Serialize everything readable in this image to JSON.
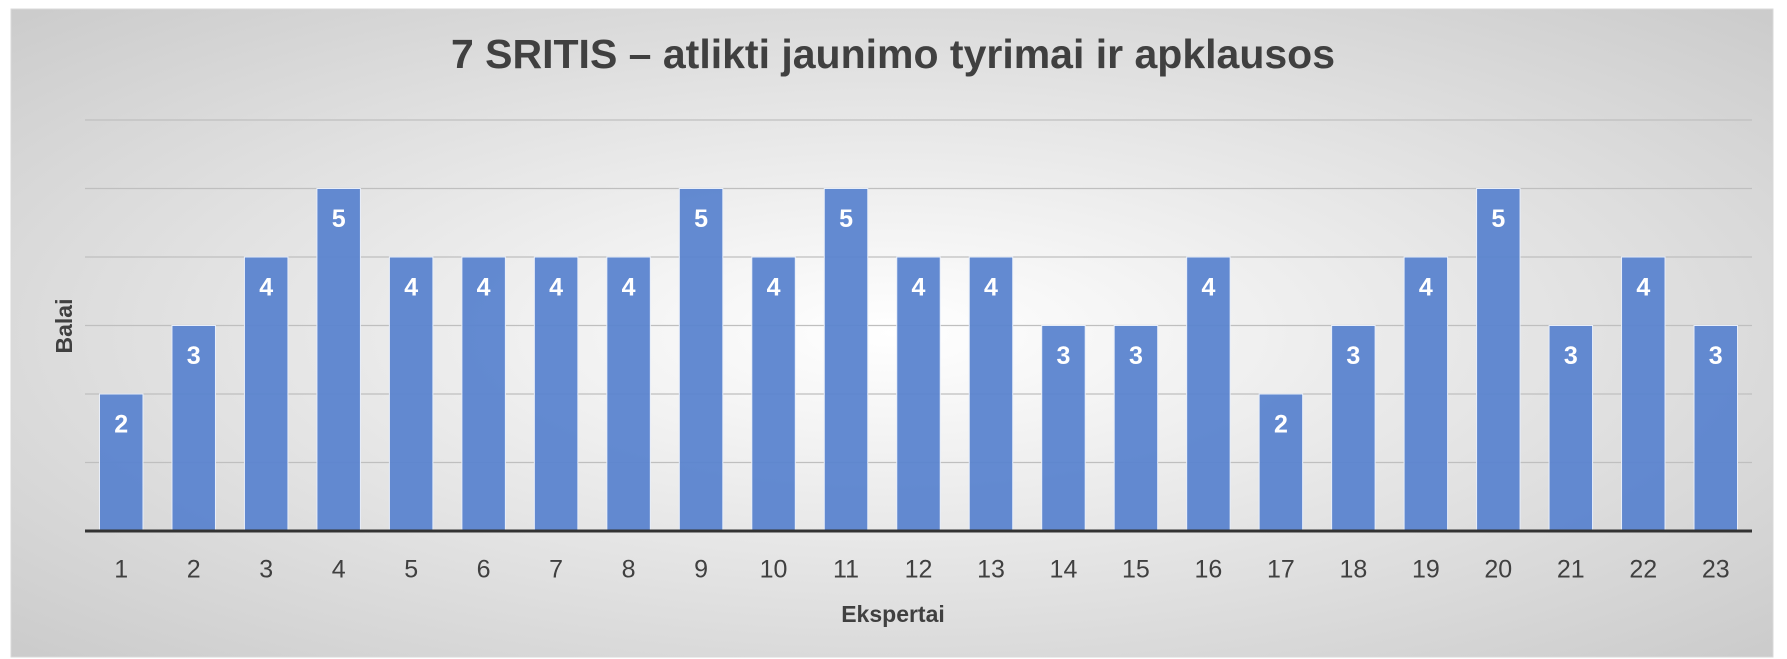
{
  "chart_data": {
    "type": "bar",
    "title": "7 SRITIS – atlikti jaunimo tyrimai ir apklausos",
    "x_label": "Ekspertai",
    "y_label": "Balai",
    "categories": [
      "1",
      "2",
      "3",
      "4",
      "5",
      "6",
      "7",
      "8",
      "9",
      "10",
      "11",
      "12",
      "13",
      "14",
      "15",
      "16",
      "17",
      "18",
      "19",
      "20",
      "21",
      "22",
      "23"
    ],
    "values": [
      2,
      3,
      4,
      5,
      4,
      4,
      4,
      4,
      5,
      4,
      5,
      4,
      4,
      3,
      3,
      4,
      2,
      3,
      4,
      5,
      3,
      4,
      3
    ],
    "color": "#5b84cf",
    "ylim": [
      0,
      6
    ],
    "yticks": [
      0,
      1,
      2,
      3,
      4,
      5,
      6
    ],
    "grid": true,
    "data_labels": true
  }
}
